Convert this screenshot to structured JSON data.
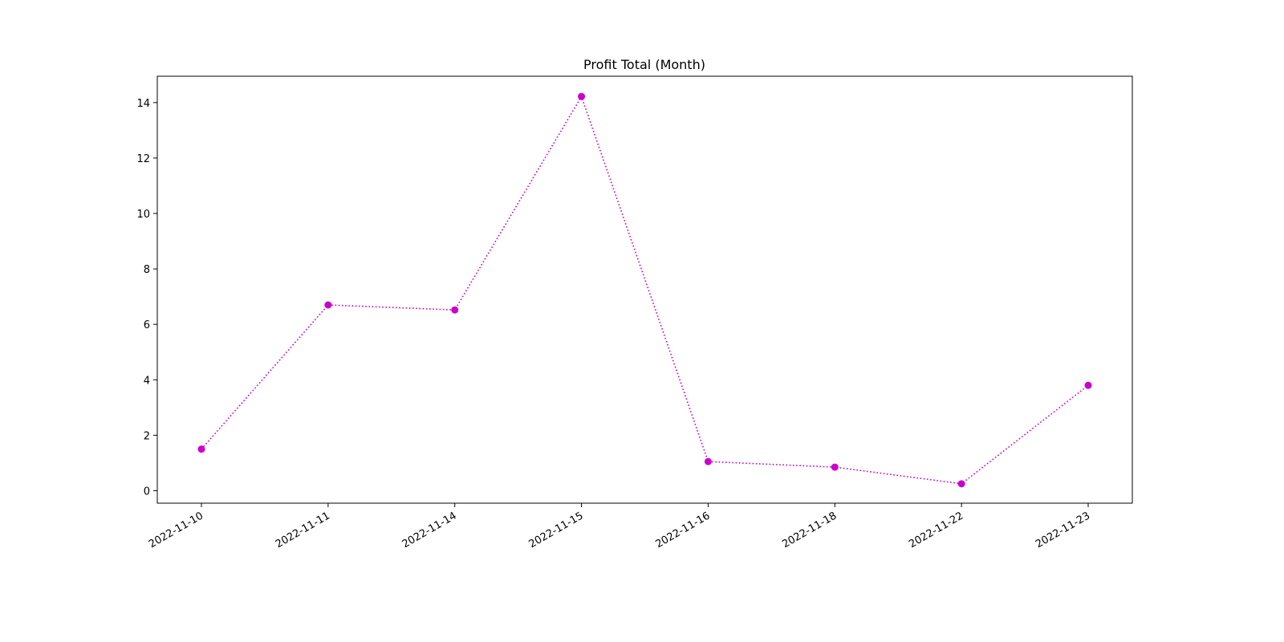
{
  "chart_data": {
    "type": "line",
    "title": "Profit Total (Month)",
    "xlabel": "",
    "ylabel": "",
    "categories": [
      "2022-11-10",
      "2022-11-11",
      "2022-11-14",
      "2022-11-15",
      "2022-11-16",
      "2022-11-18",
      "2022-11-22",
      "2022-11-23"
    ],
    "series": [
      {
        "values": [
          1.5,
          6.7,
          6.52,
          14.22,
          1.05,
          0.85,
          0.25,
          3.8
        ],
        "color": "#cc00cc",
        "line_style": "dotted",
        "marker": "circle"
      }
    ],
    "ylim": [
      -0.45,
      14.95
    ],
    "yticks": [
      0,
      2,
      4,
      6,
      8,
      10,
      12,
      14
    ],
    "grid": false,
    "legend": "none"
  }
}
